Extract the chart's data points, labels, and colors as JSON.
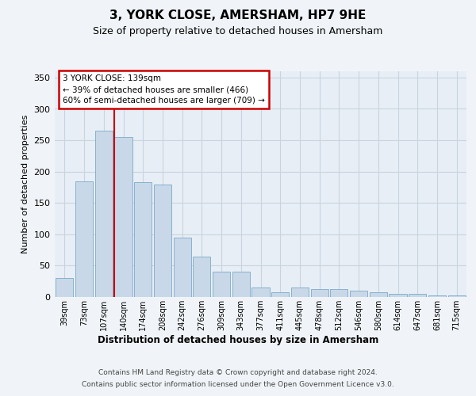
{
  "title": "3, YORK CLOSE, AMERSHAM, HP7 9HE",
  "subtitle": "Size of property relative to detached houses in Amersham",
  "xlabel": "Distribution of detached houses by size in Amersham",
  "ylabel": "Number of detached properties",
  "footer_line1": "Contains HM Land Registry data © Crown copyright and database right 2024.",
  "footer_line2": "Contains public sector information licensed under the Open Government Licence v3.0.",
  "annotation_line1": "3 YORK CLOSE: 139sqm",
  "annotation_line2": "← 39% of detached houses are smaller (466)",
  "annotation_line3": "60% of semi-detached houses are larger (709) →",
  "bar_color": "#c8d8e8",
  "bar_edge_color": "#7aaac8",
  "highlight_bar_index": 3,
  "annotation_box_edge_color": "#cc0000",
  "vline_color": "#cc0000",
  "categories": [
    "39sqm",
    "73sqm",
    "107sqm",
    "140sqm",
    "174sqm",
    "208sqm",
    "242sqm",
    "276sqm",
    "309sqm",
    "343sqm",
    "377sqm",
    "411sqm",
    "445sqm",
    "478sqm",
    "512sqm",
    "546sqm",
    "580sqm",
    "614sqm",
    "647sqm",
    "681sqm",
    "715sqm"
  ],
  "values": [
    30,
    185,
    265,
    255,
    183,
    180,
    95,
    65,
    40,
    40,
    15,
    8,
    15,
    13,
    13,
    10,
    7,
    5,
    5,
    3,
    3
  ],
  "ylim": [
    0,
    360
  ],
  "yticks": [
    0,
    50,
    100,
    150,
    200,
    250,
    300,
    350
  ],
  "grid_color": "#c8d4e0",
  "plot_bg_color": "#e8eef5",
  "fig_bg_color": "#f0f4f8"
}
